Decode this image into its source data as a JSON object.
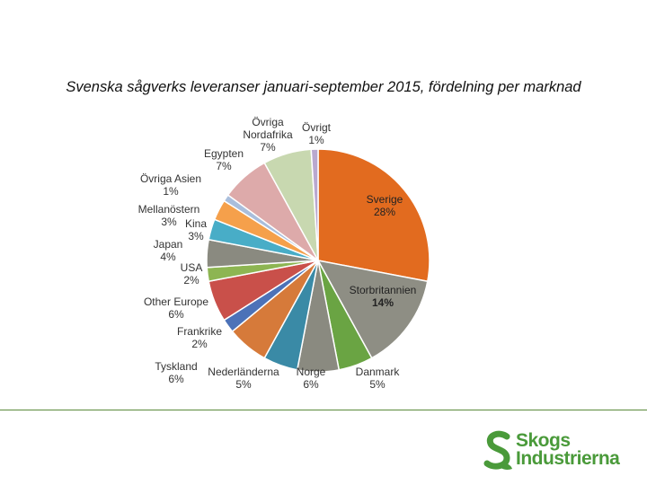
{
  "title": "Svenska sågverks leveranser januari-september 2015, fördelning per marknad",
  "chart_data": {
    "type": "pie",
    "title": "Svenska sågverks leveranser januari-september 2015, fördelning per marknad",
    "start_angle_deg": 0,
    "direction": "clockwise",
    "slices": [
      {
        "label": "Sverige",
        "value": 28,
        "pct_text": "28%",
        "color": "#E26B1F"
      },
      {
        "label": "Storbritannien",
        "value": 14,
        "pct_text": "14%",
        "color": "#8E8E84"
      },
      {
        "label": "Danmark",
        "value": 5,
        "pct_text": "5%",
        "color": "#6AA443"
      },
      {
        "label": "Norge",
        "value": 6,
        "pct_text": "6%",
        "color": "#8A8A80"
      },
      {
        "label": "Nederländerna",
        "value": 5,
        "pct_text": "5%",
        "color": "#3A8AA6"
      },
      {
        "label": "Tyskland",
        "value": 6,
        "pct_text": "6%",
        "color": "#D67A3A"
      },
      {
        "label": "Frankrike",
        "value": 2,
        "pct_text": "2%",
        "color": "#4C72B8"
      },
      {
        "label": "Other Europe",
        "value": 6,
        "pct_text": "6%",
        "color": "#C9504A"
      },
      {
        "label": "USA",
        "value": 2,
        "pct_text": "2%",
        "color": "#8DB552"
      },
      {
        "label": "Japan",
        "value": 4,
        "pct_text": "4%",
        "color": "#8A8A80"
      },
      {
        "label": "Kina",
        "value": 3,
        "pct_text": "3%",
        "color": "#48ADC7"
      },
      {
        "label": "Mellanöstern",
        "value": 3,
        "pct_text": "3%",
        "color": "#F5A04B"
      },
      {
        "label": "Övriga Asien",
        "value": 1,
        "pct_text": "1%",
        "color": "#A9BEDC"
      },
      {
        "label": "Egypten",
        "value": 7,
        "pct_text": "7%",
        "color": "#DDAAAA"
      },
      {
        "label": "Övriga Nordafrika",
        "value": 7,
        "pct_text": "7%",
        "color": "#C8D8B0"
      },
      {
        "label": "Övrigt",
        "value": 1,
        "pct_text": "1%",
        "color": "#B9A8CF"
      }
    ]
  },
  "logo": {
    "line1": "Skogs",
    "line2": "Industrierna",
    "color": "#4A9A3A"
  }
}
